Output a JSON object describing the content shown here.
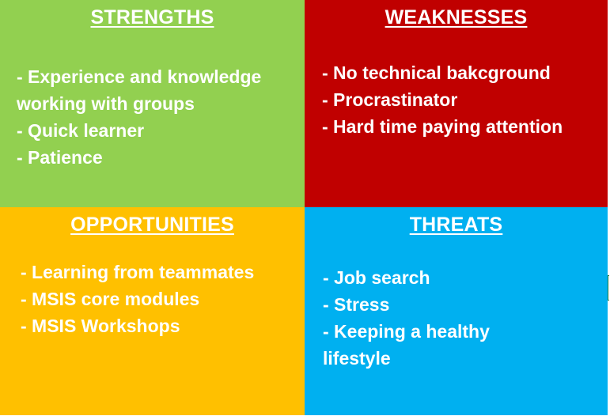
{
  "quadrants": {
    "strengths": {
      "title": "STRENGTHS",
      "color": "#92d050",
      "items": [
        "- Experience and knowledge working with groups",
        "- Quick learner",
        "- Patience"
      ]
    },
    "weaknesses": {
      "title": "WEAKNESSES",
      "color": "#c00000",
      "items": [
        "- No technical bakcground",
        "- Procrastinator",
        "- Hard time paying attention"
      ]
    },
    "opportunities": {
      "title": "OPPORTUNITIES",
      "color": "#ffc000",
      "items": [
        "- Learning from teammates",
        "- MSIS core modules",
        "- MSIS Workshops"
      ]
    },
    "threats": {
      "title": "THREATS",
      "color": "#00b0f0",
      "items": [
        "- Job search",
        "- Stress",
        "- Keeping a healthy lifestyle"
      ]
    }
  }
}
